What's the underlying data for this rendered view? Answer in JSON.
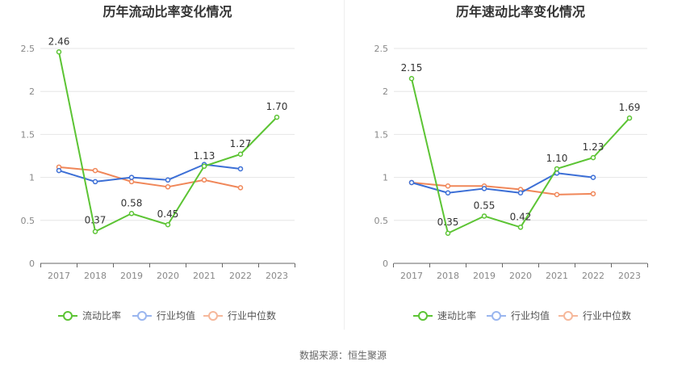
{
  "chart_data": [
    {
      "type": "line",
      "title": "历年流动比率变化情况",
      "categories": [
        "2017",
        "2018",
        "2019",
        "2020",
        "2021",
        "2022",
        "2023"
      ],
      "ylim": [
        0,
        2.5
      ],
      "yticks": [
        "0",
        "0.5",
        "1",
        "1.5",
        "2",
        "2.5"
      ],
      "series": [
        {
          "name": "流动比率",
          "color": "#5cc434",
          "values": [
            2.46,
            0.37,
            0.58,
            0.45,
            1.13,
            1.27,
            1.7
          ],
          "labels": [
            "2.46",
            "0.37",
            "0.58",
            "0.45",
            "1.13",
            "1.27",
            "1.70"
          ]
        },
        {
          "name": "行业均值",
          "color": "#3c6fd6",
          "values": [
            1.08,
            0.95,
            1.0,
            0.97,
            1.15,
            1.1,
            null
          ]
        },
        {
          "name": "行业中位数",
          "color": "#f08759",
          "values": [
            1.12,
            1.08,
            0.95,
            0.89,
            0.97,
            0.88,
            null
          ]
        }
      ]
    },
    {
      "type": "line",
      "title": "历年速动比率变化情况",
      "categories": [
        "2017",
        "2018",
        "2019",
        "2020",
        "2021",
        "2022",
        "2023"
      ],
      "ylim": [
        0,
        2.5
      ],
      "yticks": [
        "0",
        "0.5",
        "1",
        "1.5",
        "2",
        "2.5"
      ],
      "series": [
        {
          "name": "速动比率",
          "color": "#5cc434",
          "values": [
            2.15,
            0.35,
            0.55,
            0.42,
            1.1,
            1.23,
            1.69
          ],
          "labels": [
            "2.15",
            "0.35",
            "0.55",
            "0.42",
            "1.10",
            "1.23",
            "1.69"
          ]
        },
        {
          "name": "行业均值",
          "color": "#3c6fd6",
          "values": [
            0.94,
            0.82,
            0.87,
            0.82,
            1.05,
            1.0,
            null
          ]
        },
        {
          "name": "行业中位数",
          "color": "#f08759",
          "values": [
            0.94,
            0.9,
            0.9,
            0.86,
            0.8,
            0.81,
            null
          ]
        }
      ]
    }
  ],
  "footer": {
    "source": "数据来源：恒生聚源"
  }
}
